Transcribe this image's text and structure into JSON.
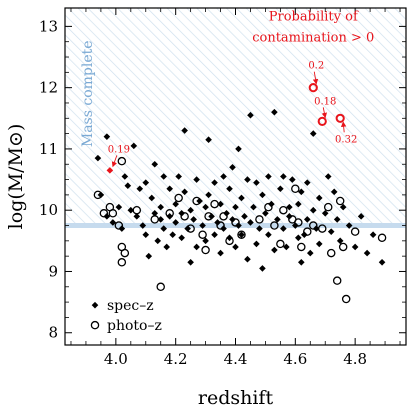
{
  "chart_data": {
    "type": "scatter",
    "xlabel": "redshift",
    "ylabel": "log(M/M⊙)",
    "xlim": [
      3.83,
      4.97
    ],
    "ylim": [
      7.8,
      13.3
    ],
    "xticks": [
      4.0,
      4.2,
      4.4,
      4.6,
      4.8
    ],
    "xtick_labels": [
      "4.0",
      "4.2",
      "4.4",
      "4.6",
      "4.8"
    ],
    "yticks": [
      8,
      9,
      10,
      11,
      12,
      13
    ],
    "ytick_labels": [
      "8",
      "9",
      "10",
      "11",
      "12",
      "13"
    ],
    "grid": false,
    "legend": {
      "placement": "bottom-left",
      "entries": [
        {
          "label": "spec–z",
          "marker": "filled-diamond"
        },
        {
          "label": "photo–z",
          "marker": "open-circle"
        }
      ]
    },
    "mass_complete_region": {
      "label": "Mass complete",
      "lower_limit": 9.75,
      "color": "#8fb5d9"
    },
    "contamination_note": "Probability of contamination > 0",
    "colors": {
      "points": "#000000",
      "contaminated": "#e8141b",
      "mass_complete": "#8fb5d9"
    },
    "series": [
      {
        "name": "spec–z",
        "marker": "diamond",
        "points": [
          [
            3.94,
            10.85
          ],
          [
            3.95,
            10.25
          ],
          [
            3.97,
            11.2
          ],
          [
            3.97,
            9.9
          ],
          [
            3.99,
            9.8
          ],
          [
            4.01,
            10.05
          ],
          [
            4.02,
            9.7
          ],
          [
            4.03,
            10.55
          ],
          [
            4.04,
            10.4
          ],
          [
            4.05,
            10.0
          ],
          [
            4.06,
            11.05
          ],
          [
            4.07,
            9.9
          ],
          [
            4.08,
            10.35
          ],
          [
            4.09,
            9.75
          ],
          [
            4.1,
            10.45
          ],
          [
            4.1,
            9.6
          ],
          [
            4.11,
            9.25
          ],
          [
            4.12,
            10.2
          ],
          [
            4.13,
            9.95
          ],
          [
            4.13,
            10.75
          ],
          [
            4.14,
            9.5
          ],
          [
            4.15,
            9.85
          ],
          [
            4.15,
            10.05
          ],
          [
            4.16,
            10.55
          ],
          [
            4.16,
            9.7
          ],
          [
            4.17,
            9.4
          ],
          [
            4.18,
            9.9
          ],
          [
            4.18,
            10.35
          ],
          [
            4.19,
            9.6
          ],
          [
            4.2,
            10.1
          ],
          [
            4.2,
            9.8
          ],
          [
            4.21,
            10.55
          ],
          [
            4.22,
            9.95
          ],
          [
            4.22,
            9.55
          ],
          [
            4.23,
            10.3
          ],
          [
            4.23,
            11.3
          ],
          [
            4.24,
            9.7
          ],
          [
            4.25,
            10.0
          ],
          [
            4.25,
            9.15
          ],
          [
            4.26,
            9.85
          ],
          [
            4.27,
            10.5
          ],
          [
            4.27,
            9.4
          ],
          [
            4.28,
            10.15
          ],
          [
            4.29,
            9.75
          ],
          [
            4.3,
            10.05
          ],
          [
            4.3,
            9.5
          ],
          [
            4.31,
            10.25
          ],
          [
            4.31,
            11.15
          ],
          [
            4.32,
            9.9
          ],
          [
            4.33,
            9.6
          ],
          [
            4.33,
            10.45
          ],
          [
            4.34,
            9.8
          ],
          [
            4.35,
            10.1
          ],
          [
            4.35,
            9.3
          ],
          [
            4.36,
            9.7
          ],
          [
            4.36,
            10.55
          ],
          [
            4.37,
            9.95
          ],
          [
            4.38,
            9.55
          ],
          [
            4.38,
            10.35
          ],
          [
            4.39,
            9.85
          ],
          [
            4.39,
            10.7
          ],
          [
            4.4,
            9.4
          ],
          [
            4.4,
            10.05
          ],
          [
            4.41,
            9.75
          ],
          [
            4.41,
            11.0
          ],
          [
            4.42,
            9.6
          ],
          [
            4.42,
            10.2
          ],
          [
            4.43,
            9.9
          ],
          [
            4.44,
            9.2
          ],
          [
            4.44,
            10.5
          ],
          [
            4.45,
            9.8
          ],
          [
            4.45,
            11.55
          ],
          [
            4.46,
            10.05
          ],
          [
            4.47,
            9.45
          ],
          [
            4.47,
            10.45
          ],
          [
            4.48,
            9.7
          ],
          [
            4.49,
            10.25
          ],
          [
            4.49,
            9.05
          ],
          [
            4.5,
            9.95
          ],
          [
            4.51,
            10.55
          ],
          [
            4.51,
            9.6
          ],
          [
            4.52,
            10.1
          ],
          [
            4.53,
            9.35
          ],
          [
            4.53,
            11.6
          ],
          [
            4.54,
            9.85
          ],
          [
            4.55,
            10.35
          ],
          [
            4.56,
            9.7
          ],
          [
            4.56,
            10.55
          ],
          [
            4.57,
            9.4
          ],
          [
            4.58,
            10.05
          ],
          [
            4.58,
            9.9
          ],
          [
            4.59,
            10.5
          ],
          [
            4.6,
            9.75
          ],
          [
            4.61,
            9.55
          ],
          [
            4.61,
            10.1
          ],
          [
            4.62,
            9.15
          ],
          [
            4.62,
            10.3
          ],
          [
            4.63,
            9.6
          ],
          [
            4.64,
            9.85
          ],
          [
            4.64,
            10.45
          ],
          [
            4.65,
            9.3
          ],
          [
            4.66,
            10.0
          ],
          [
            4.66,
            11.25
          ],
          [
            4.67,
            9.7
          ],
          [
            4.68,
            10.2
          ],
          [
            4.68,
            9.45
          ],
          [
            4.7,
            9.95
          ],
          [
            4.71,
            10.55
          ],
          [
            4.72,
            9.65
          ],
          [
            4.73,
            10.3
          ],
          [
            4.74,
            9.85
          ],
          [
            4.75,
            9.5
          ],
          [
            4.76,
            10.05
          ],
          [
            4.78,
            9.75
          ],
          [
            4.8,
            9.4
          ],
          [
            4.82,
            9.9
          ],
          [
            4.84,
            9.3
          ],
          [
            4.86,
            9.6
          ],
          [
            4.89,
            9.15
          ]
        ]
      },
      {
        "name": "photo–z",
        "marker": "open-circle",
        "points": [
          [
            3.94,
            10.25
          ],
          [
            3.96,
            9.95
          ],
          [
            3.98,
            10.05
          ],
          [
            3.99,
            9.95
          ],
          [
            4.01,
            9.75
          ],
          [
            4.02,
            10.8
          ],
          [
            4.02,
            9.4
          ],
          [
            4.03,
            9.3
          ],
          [
            4.02,
            9.15
          ],
          [
            4.07,
            10.0
          ],
          [
            4.13,
            9.85
          ],
          [
            4.15,
            8.75
          ],
          [
            4.18,
            9.95
          ],
          [
            4.21,
            10.2
          ],
          [
            4.23,
            9.9
          ],
          [
            4.25,
            9.7
          ],
          [
            4.27,
            10.15
          ],
          [
            4.29,
            9.6
          ],
          [
            4.3,
            9.35
          ],
          [
            4.31,
            9.9
          ],
          [
            4.33,
            10.1
          ],
          [
            4.35,
            9.75
          ],
          [
            4.36,
            9.9
          ],
          [
            4.38,
            9.5
          ],
          [
            4.4,
            9.8
          ],
          [
            4.42,
            9.6
          ],
          [
            4.48,
            9.85
          ],
          [
            4.51,
            10.05
          ],
          [
            4.53,
            9.75
          ],
          [
            4.55,
            9.45
          ],
          [
            4.56,
            10.0
          ],
          [
            4.59,
            9.85
          ],
          [
            4.6,
            10.35
          ],
          [
            4.61,
            9.8
          ],
          [
            4.62,
            9.4
          ],
          [
            4.64,
            9.65
          ],
          [
            4.66,
            9.75
          ],
          [
            4.69,
            9.7
          ],
          [
            4.71,
            10.05
          ],
          [
            4.72,
            9.3
          ],
          [
            4.74,
            8.85
          ],
          [
            4.75,
            10.15
          ],
          [
            4.76,
            9.4
          ],
          [
            4.77,
            8.55
          ],
          [
            4.8,
            9.65
          ],
          [
            4.89,
            9.55
          ]
        ]
      },
      {
        "name": "",
        "marker": "diamond",
        "color": "#e8141b",
        "points": [
          [
            3.98,
            10.65
          ]
        ],
        "labels": [
          "0.19"
        ]
      },
      {
        "name": "",
        "marker": "open-circle",
        "color": "#e8141b",
        "points": [
          [
            4.66,
            12.0
          ],
          [
            4.69,
            11.45
          ],
          [
            4.75,
            11.5
          ]
        ],
        "labels": [
          "0.2",
          "0.18",
          "0.32"
        ]
      }
    ]
  }
}
